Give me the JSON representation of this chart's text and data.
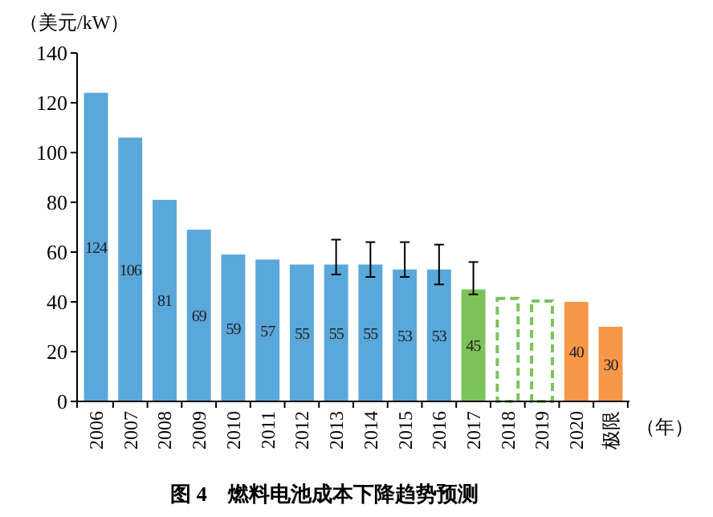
{
  "chart_data": {
    "type": "bar",
    "title": "图 4　燃料电池成本下降趋势预测",
    "ylabel": "（美元/kW）",
    "xlabel": "（年）",
    "categories": [
      "2006",
      "2007",
      "2008",
      "2009",
      "2010",
      "2011",
      "2012",
      "2013",
      "2014",
      "2015",
      "2016",
      "2017",
      "2018",
      "2019",
      "2020",
      "极限"
    ],
    "series": [
      {
        "colors": [
          "#5aa7da",
          "#5aa7da",
          "#5aa7da",
          "#5aa7da",
          "#5aa7da",
          "#5aa7da",
          "#5aa7da",
          "#5aa7da",
          "#5aa7da",
          "#5aa7da",
          "#5aa7da",
          "#7cc35a",
          null,
          null,
          "#f79748",
          "#f79748"
        ],
        "values": [
          124,
          106,
          81,
          69,
          59,
          57,
          55,
          55,
          55,
          53,
          53,
          45,
          null,
          null,
          40,
          30
        ],
        "value_labels": [
          "124",
          "106",
          "81",
          "69",
          "59",
          "57",
          "55",
          "55",
          "55",
          "53",
          "53",
          "45",
          null,
          null,
          "40",
          "30"
        ],
        "errors": [
          null,
          null,
          null,
          null,
          null,
          null,
          null,
          [
            51,
            65
          ],
          [
            50,
            64
          ],
          [
            50,
            64
          ],
          [
            47,
            63
          ],
          [
            43,
            56
          ],
          null,
          null,
          null,
          null
        ]
      },
      {
        "color": "#7cc35a",
        "line_style": "dashed",
        "values": [
          null,
          null,
          null,
          null,
          null,
          null,
          null,
          null,
          null,
          null,
          null,
          null,
          42,
          41,
          null,
          null
        ]
      }
    ],
    "ylim": [
      0,
      140
    ],
    "yticks": [
      0,
      20,
      40,
      60,
      80,
      100,
      120,
      140
    ],
    "grid": false
  }
}
